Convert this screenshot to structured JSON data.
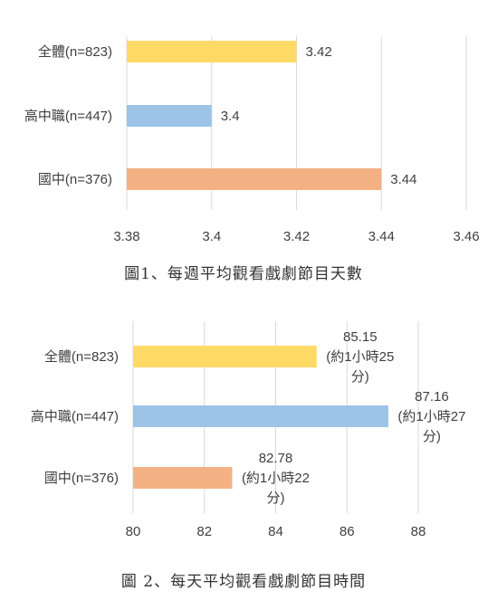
{
  "chart_data": [
    {
      "type": "bar",
      "orientation": "horizontal",
      "caption": "圖1、每週平均觀看戲劇節目天數",
      "categories": [
        "全體(n=823)",
        "高中職(n=447)",
        "國中(n=376)"
      ],
      "values": [
        3.42,
        3.4,
        3.44
      ],
      "value_labels": [
        [
          "3.42"
        ],
        [
          "3.4"
        ],
        [
          "3.44"
        ]
      ],
      "colors": [
        "#FFD966",
        "#9DC3E6",
        "#F4B183"
      ],
      "xlim": [
        3.38,
        3.46
      ],
      "xticks": [
        "3.38",
        "3.4",
        "3.42",
        "3.44",
        "3.46"
      ],
      "grid": true
    },
    {
      "type": "bar",
      "orientation": "horizontal",
      "caption": "圖 2、每天平均觀看戲劇節目時間",
      "categories": [
        "全體(n=823)",
        "高中職(n=447)",
        "國中(n=376)"
      ],
      "values": [
        85.15,
        87.16,
        82.78
      ],
      "value_labels": [
        [
          "85.15",
          "(約1小時25",
          "分)"
        ],
        [
          "87.16",
          "(約1小時27",
          "分)"
        ],
        [
          "82.78",
          "(約1小時22",
          "分)"
        ]
      ],
      "colors": [
        "#FFD966",
        "#9DC3E6",
        "#F4B183"
      ],
      "xlim": [
        80,
        88
      ],
      "xticks": [
        "80",
        "82",
        "84",
        "86",
        "88"
      ],
      "grid": true
    }
  ]
}
